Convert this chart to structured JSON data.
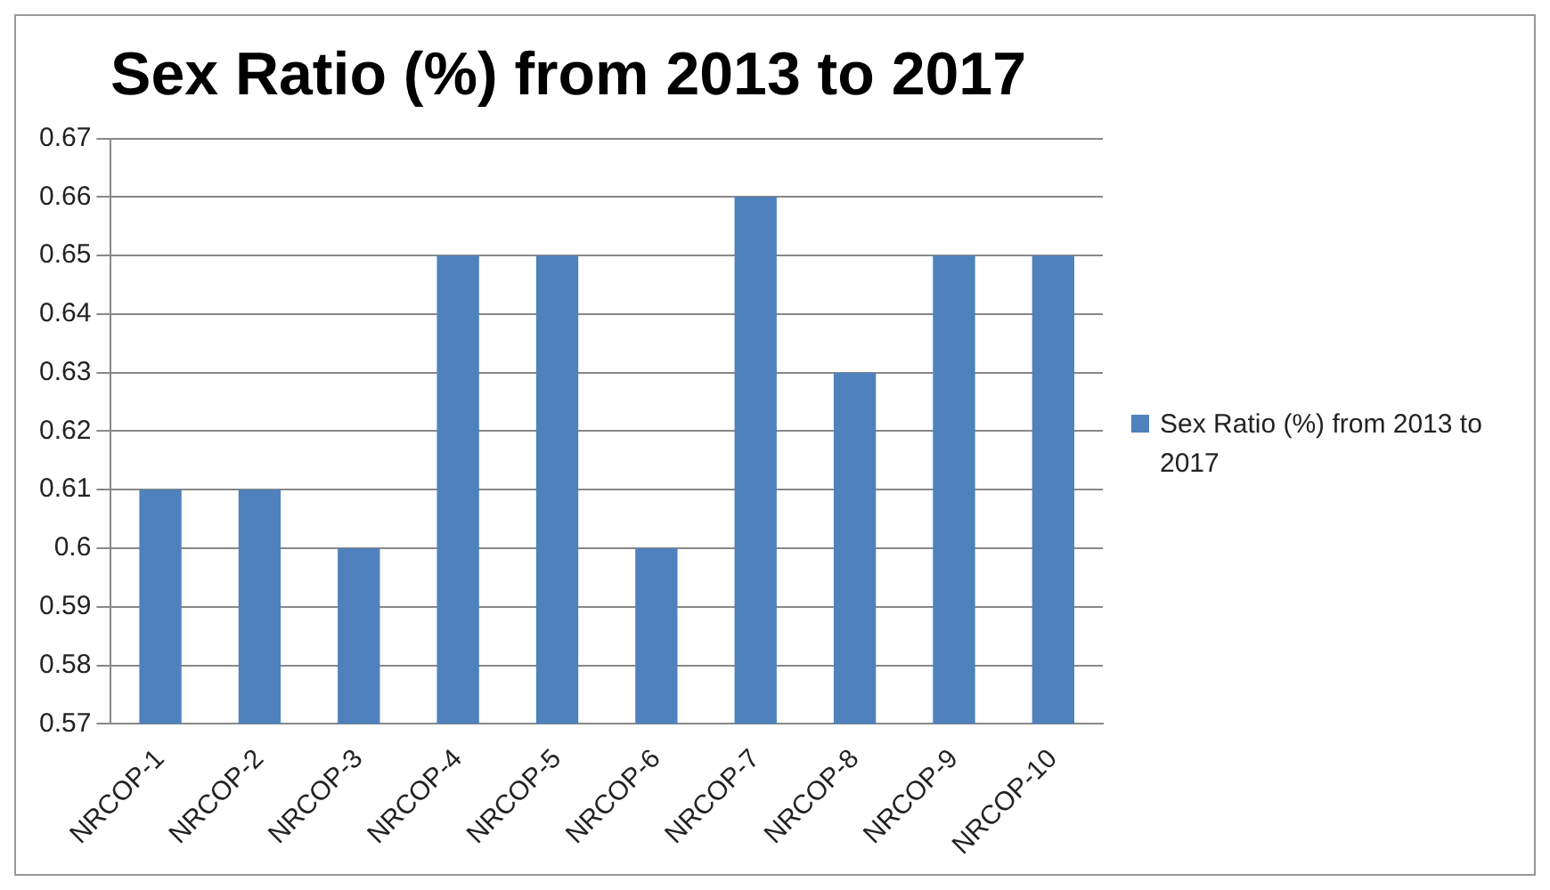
{
  "chart_data": {
    "type": "bar",
    "title": "Sex Ratio (%) from 2013 to 2017",
    "categories": [
      "NRCOP-1",
      "NRCOP-2",
      "NRCOP-3",
      "NRCOP-4",
      "NRCOP-5",
      "NRCOP-6",
      "NRCOP-7",
      "NRCOP-8",
      "NRCOP-9",
      "NRCOP-10"
    ],
    "series": [
      {
        "name": "Sex Ratio (%) from 2013 to 2017",
        "color": "#4f81bd",
        "values": [
          0.61,
          0.61,
          0.6,
          0.65,
          0.65,
          0.6,
          0.66,
          0.63,
          0.65,
          0.65
        ]
      }
    ],
    "ylim": [
      0.57,
      0.67
    ],
    "yticks": [
      0.57,
      0.58,
      0.59,
      0.6,
      0.61,
      0.62,
      0.63,
      0.64,
      0.65,
      0.66,
      0.67
    ],
    "grid": "y",
    "legend": "right"
  }
}
